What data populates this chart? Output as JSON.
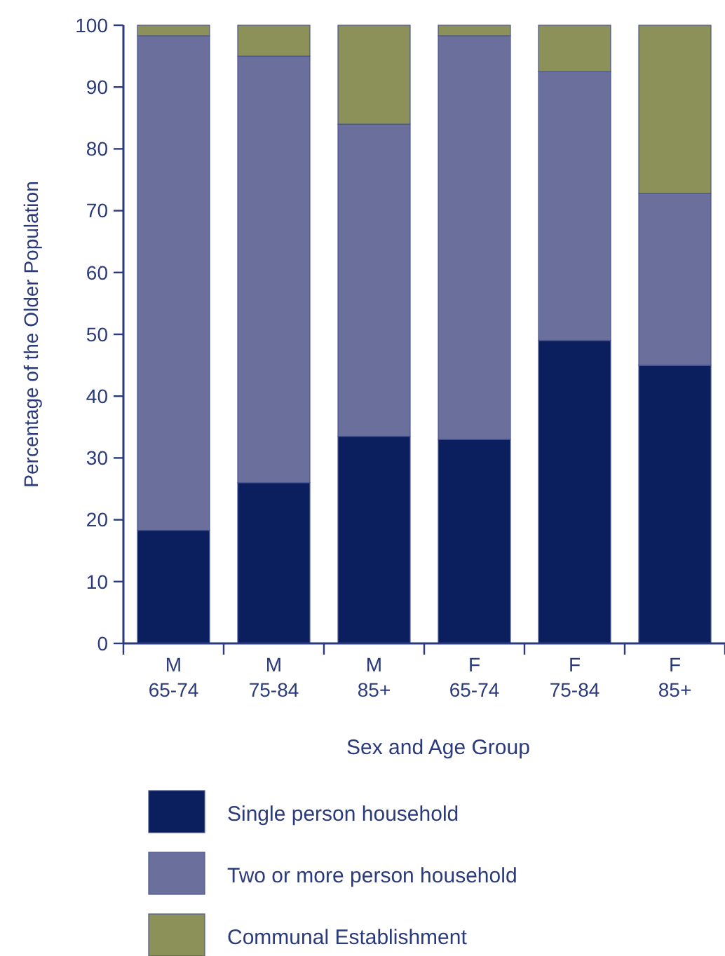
{
  "chart_data": {
    "type": "bar",
    "stacked": true,
    "xlabel": "Sex and Age Group",
    "ylabel": "Percentage of the Older Population",
    "categories": [
      "M\n65-74",
      "M\n75-84",
      "M\n85+",
      "F\n65-74",
      "F\n75-84",
      "F\n85+"
    ],
    "series": [
      {
        "name": "Single person household",
        "color": "#0b1f5e",
        "values": [
          18.3,
          26,
          33.5,
          33,
          49,
          45
        ]
      },
      {
        "name": "Two or more person household",
        "color": "#6b6f9c",
        "values": [
          80,
          69,
          50.5,
          65.3,
          43.5,
          27.8
        ]
      },
      {
        "name": "Communal Establishment",
        "color": "#8c9159",
        "values": [
          1.7,
          5,
          16,
          1.7,
          7.5,
          27.2
        ]
      }
    ],
    "ylim": [
      0,
      100
    ],
    "yticks": [
      0,
      10,
      20,
      30,
      40,
      50,
      60,
      70,
      80,
      90,
      100
    ],
    "grid": false,
    "legend": "bottom"
  }
}
